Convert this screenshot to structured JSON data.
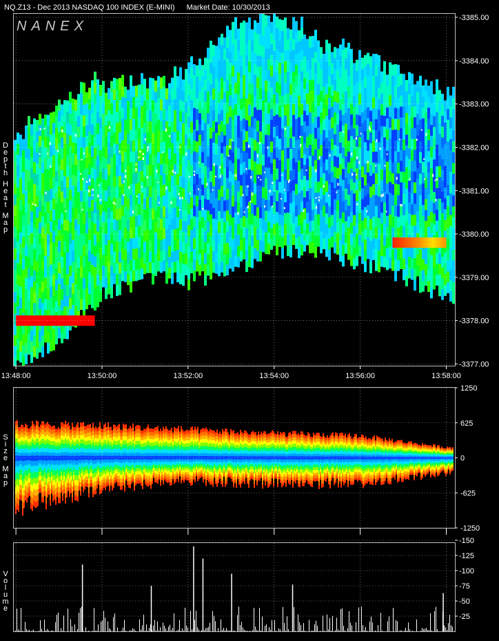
{
  "header": {
    "symbol": "NQ.Z13 - Dec 2013 NASDAQ 100 INDEX (E-MINI)",
    "market_date": "Market Date: 10/30/2013"
  },
  "watermark": "NANEX",
  "panels": {
    "depth": {
      "label": [
        "Depth",
        "Heat",
        "Map"
      ]
    },
    "size": {
      "label": [
        "Size",
        "Map"
      ]
    },
    "volume": {
      "label": [
        "Volume"
      ]
    }
  },
  "colors": {
    "background": "#000000",
    "frame": "#c0c0c0",
    "grid": "#ffffff",
    "heat_low": "#00ff00",
    "heat_mid": "#00c8ff",
    "heat_high": "#0030ff",
    "heat_extreme": "#ff0000"
  },
  "chart_data": [
    {
      "type": "heatmap",
      "title": "Depth Heat Map",
      "x_ticks": [
        "13:48:00",
        "13:50:00",
        "13:52:00",
        "13:54:00",
        "13:56:00",
        "13:58:00"
      ],
      "y_ticks": [
        "3385.00",
        "3384.00",
        "3383.00",
        "3382.00",
        "3381.00",
        "3380.00",
        "3379.00",
        "3378.00",
        "3377.00"
      ],
      "ylim": [
        3376.96,
        3385.08
      ],
      "xlim": [
        "13:47:57",
        "13:58:12"
      ],
      "grid": true,
      "price_envelope": {
        "time": [
          "13:48:00",
          "13:49:00",
          "13:50:00",
          "13:51:00",
          "13:52:00",
          "13:53:00",
          "13:54:00",
          "13:55:00",
          "13:56:00",
          "13:57:00",
          "13:58:00"
        ],
        "upper": [
          3382.1,
          3382.9,
          3383.4,
          3383.4,
          3383.7,
          3384.6,
          3385.0,
          3384.3,
          3384.0,
          3383.6,
          3383.2
        ],
        "lower": [
          3377.0,
          3377.6,
          3378.6,
          3379.0,
          3378.9,
          3379.2,
          3379.6,
          3379.6,
          3379.3,
          3379.0,
          3378.5
        ]
      },
      "hot_bands": [
        {
          "price": 3378.0,
          "from": "13:48:00",
          "to": "13:49:50",
          "color": "#ff0000"
        },
        {
          "price": 3379.8,
          "from": "13:56:45",
          "to": "13:58:00",
          "color": "#ff8000"
        }
      ]
    },
    {
      "type": "area",
      "title": "Size Map",
      "y_ticks": [
        "1250",
        "625",
        "0",
        "-625",
        "-1250"
      ],
      "ylim": [
        -1250,
        1250
      ],
      "grid": true,
      "upper_extent": {
        "time": [
          "13:48:00",
          "13:50:00",
          "13:52:00",
          "13:54:00",
          "13:56:00",
          "13:58:00"
        ],
        "values": [
          650,
          620,
          540,
          470,
          420,
          200
        ]
      },
      "lower_extent": {
        "time": [
          "13:48:00",
          "13:50:00",
          "13:52:00",
          "13:54:00",
          "13:56:00",
          "13:58:00"
        ],
        "values": [
          -1000,
          -600,
          -450,
          -520,
          -500,
          -300
        ]
      }
    },
    {
      "type": "bar",
      "title": "Volume",
      "y_ticks": [
        "150",
        "125",
        "100",
        "75",
        "50",
        "25"
      ],
      "ylim": [
        0,
        150
      ],
      "grid": true,
      "peaks": [
        {
          "time": "13:49:32",
          "value": 110
        },
        {
          "time": "13:52:07",
          "value": 140
        },
        {
          "time": "13:52:20",
          "value": 120
        },
        {
          "time": "13:53:00",
          "value": 95
        },
        {
          "time": "13:51:08",
          "value": 75
        },
        {
          "time": "13:54:25",
          "value": 77
        },
        {
          "time": "13:57:55",
          "value": 63
        }
      ]
    }
  ]
}
